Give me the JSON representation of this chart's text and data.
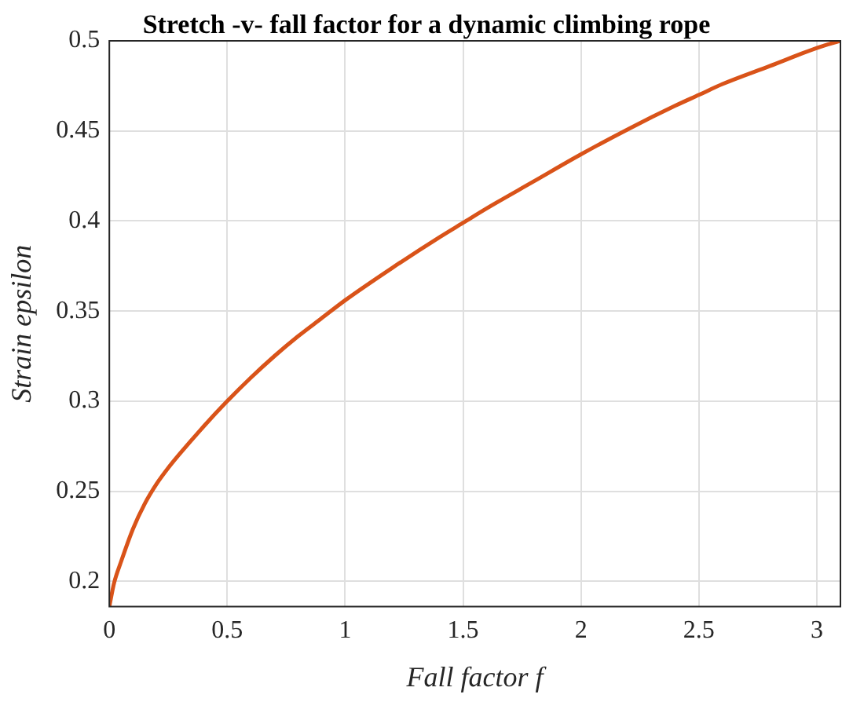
{
  "chart_data": {
    "type": "line",
    "title": "Stretch -v- fall factor for a dynamic climbing rope",
    "xlabel": "Fall factor f",
    "ylabel": "Strain epsilon",
    "x": [
      0,
      0.02,
      0.05,
      0.1,
      0.15,
      0.2,
      0.25,
      0.3,
      0.4,
      0.5,
      0.6,
      0.7,
      0.8,
      0.9,
      1,
      1.2,
      1.4,
      1.5,
      1.6,
      1.8,
      2,
      2.2,
      2.4,
      2.5,
      2.6,
      2.8,
      3,
      3.1
    ],
    "series": [
      {
        "color": "#d95319",
        "values": [
          0.186,
          0.199,
          0.211,
          0.229,
          0.243,
          0.254,
          0.263,
          0.271,
          0.286,
          0.3,
          0.313,
          0.325,
          0.336,
          0.346,
          0.356,
          0.374,
          0.391,
          0.399,
          0.407,
          0.422,
          0.437,
          0.451,
          0.464,
          0.47,
          0.476,
          0.486,
          0.496,
          0.5
        ]
      }
    ],
    "xlim": [
      0,
      3.1
    ],
    "xticks": [
      0,
      0.5,
      1,
      1.5,
      2,
      2.5,
      3
    ],
    "ylim": [
      0.186,
      0.5
    ],
    "yticks": [
      0.2,
      0.25,
      0.3,
      0.35,
      0.4,
      0.45,
      0.5
    ],
    "grid": true,
    "marker": "none",
    "line_style": "solid"
  }
}
